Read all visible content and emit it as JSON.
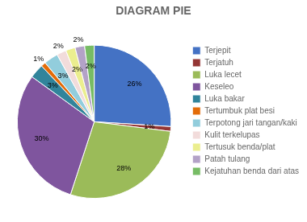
{
  "chart_data": {
    "type": "pie",
    "title": "DIAGRAM PIE",
    "categories": [
      "Terjepit",
      "Terjatuh",
      "Luka lecet",
      "Keseleo",
      "Luka bakar",
      "Tertumbuk plat besi",
      "Terpotong jari tangan/kaki",
      "Kulit terkelupas",
      "Tertusuk benda/plat",
      "Patah tulang",
      "Kejatuhan benda dari atas"
    ],
    "values": [
      26,
      1,
      28,
      30,
      3,
      1,
      3,
      2,
      2,
      2,
      2
    ],
    "value_labels": [
      "26%",
      "1%",
      "28%",
      "30%",
      "3%",
      "1%",
      "3%",
      "2%",
      "2%",
      "2%",
      "2%"
    ],
    "colors": [
      "#4472C4",
      "#943634",
      "#9BBB59",
      "#7F559E",
      "#31849B",
      "#E36C09",
      "#92CDDC",
      "#F2DCDB",
      "#EBEE8F",
      "#B3A2C7",
      "#77BC65"
    ],
    "legend": "right",
    "data_labels": true
  }
}
